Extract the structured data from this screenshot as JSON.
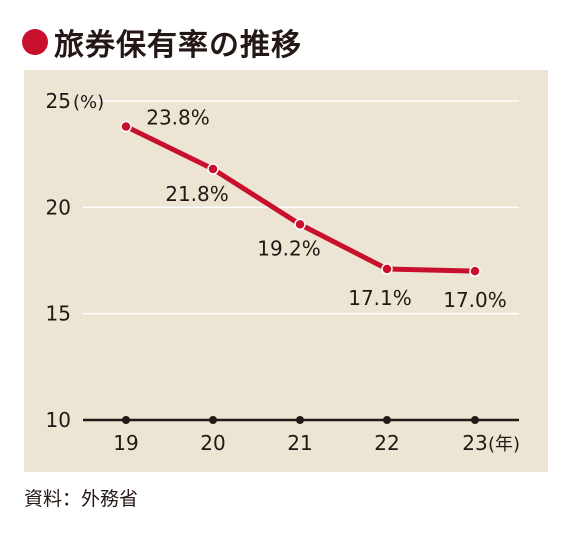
{
  "title": "旅券保有率の推移",
  "source": "資料：外務省",
  "colors": {
    "accent": "#c8102e",
    "background": "#ede5d4",
    "grid": "#ffffff",
    "text": "#231815"
  },
  "chart_data": {
    "type": "line",
    "title": "旅券保有率の推移",
    "xlabel": "",
    "ylabel": "",
    "x_unit": "(年)",
    "y_unit": "(%)",
    "categories": [
      "19",
      "20",
      "21",
      "22",
      "23"
    ],
    "values": [
      23.8,
      21.8,
      19.2,
      17.1,
      17.0
    ],
    "data_labels": [
      "23.8%",
      "21.8%",
      "19.2%",
      "17.1%",
      "17.0%"
    ],
    "yticks": [
      "10",
      "15",
      "20",
      "25"
    ],
    "ylim": [
      10,
      25
    ],
    "grid": true,
    "legend": "none"
  }
}
